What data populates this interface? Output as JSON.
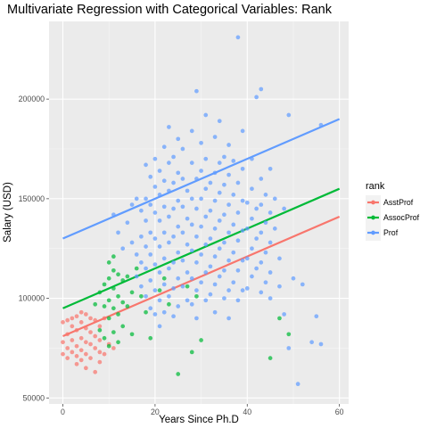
{
  "chart_data": {
    "type": "scatter",
    "title": "Multivariate Regression with Categorical Variables: Rank",
    "xlabel": "Years Since Ph.D",
    "ylabel": "Salary (USD)",
    "xlim": [
      -3,
      62
    ],
    "ylim": [
      47000,
      239000
    ],
    "x_ticks": [
      0,
      20,
      40,
      60
    ],
    "x_tick_labels": [
      "0",
      "20",
      "40",
      "60"
    ],
    "y_ticks": [
      50000,
      100000,
      150000,
      200000
    ],
    "y_tick_labels": [
      "50000",
      "100000",
      "150000",
      "200000"
    ],
    "grid": true,
    "panel_background": "#ebebeb",
    "legend": {
      "title": "rank",
      "placement": "right"
    },
    "series": [
      {
        "name": "AsstProf",
        "color": "#F8766D",
        "fit_line": [
          [
            0,
            81000
          ],
          [
            60,
            141000
          ]
        ],
        "points": [
          [
            0,
            88000
          ],
          [
            0,
            78000
          ],
          [
            0,
            72000
          ],
          [
            1,
            89000
          ],
          [
            1,
            82000
          ],
          [
            1,
            75000
          ],
          [
            1,
            70000
          ],
          [
            2,
            90000
          ],
          [
            2,
            86000
          ],
          [
            2,
            79000
          ],
          [
            2,
            73000
          ],
          [
            3,
            91000
          ],
          [
            3,
            84000
          ],
          [
            3,
            76000
          ],
          [
            3,
            71000
          ],
          [
            3,
            67000
          ],
          [
            4,
            93000
          ],
          [
            4,
            88000
          ],
          [
            4,
            80000
          ],
          [
            4,
            74000
          ],
          [
            4,
            69000
          ],
          [
            5,
            92000
          ],
          [
            5,
            85000
          ],
          [
            5,
            78000
          ],
          [
            5,
            72000
          ],
          [
            5,
            65000
          ],
          [
            6,
            90000
          ],
          [
            6,
            83000
          ],
          [
            6,
            77000
          ],
          [
            6,
            70000
          ],
          [
            7,
            89000
          ],
          [
            7,
            81000
          ],
          [
            7,
            75000
          ],
          [
            7,
            63000
          ],
          [
            8,
            86000
          ],
          [
            8,
            79000
          ],
          [
            8,
            73000
          ],
          [
            8,
            68000
          ],
          [
            9,
            90000
          ],
          [
            9,
            72000
          ],
          [
            10,
            77000
          ],
          [
            11,
            75000
          ]
        ]
      },
      {
        "name": "AssocProf",
        "color": "#00BA38",
        "fit_line": [
          [
            0,
            95000
          ],
          [
            60,
            155000
          ]
        ],
        "points": [
          [
            7,
            97000
          ],
          [
            8,
            103000
          ],
          [
            8,
            84000
          ],
          [
            9,
            107000
          ],
          [
            9,
            96000
          ],
          [
            9,
            80000
          ],
          [
            10,
            118000
          ],
          [
            10,
            110000
          ],
          [
            10,
            99000
          ],
          [
            10,
            90000
          ],
          [
            10,
            76000
          ],
          [
            11,
            121000
          ],
          [
            11,
            114000
          ],
          [
            11,
            105000
          ],
          [
            11,
            95000
          ],
          [
            11,
            83000
          ],
          [
            12,
            112000
          ],
          [
            12,
            101000
          ],
          [
            12,
            92000
          ],
          [
            12,
            78000
          ],
          [
            13,
            109000
          ],
          [
            13,
            98000
          ],
          [
            13,
            86000
          ],
          [
            14,
            111000
          ],
          [
            14,
            96000
          ],
          [
            15,
            103000
          ],
          [
            15,
            82000
          ],
          [
            16,
            115000
          ],
          [
            17,
            101000
          ],
          [
            18,
            93000
          ],
          [
            19,
            80000
          ],
          [
            21,
            104000
          ],
          [
            22,
            110000
          ],
          [
            23,
            97000
          ],
          [
            25,
            62000
          ],
          [
            27,
            106000
          ],
          [
            28,
            73000
          ],
          [
            29,
            101000
          ],
          [
            30,
            79000
          ],
          [
            45,
            70000
          ],
          [
            47,
            90000
          ],
          [
            49,
            82000
          ]
        ]
      },
      {
        "name": "Prof",
        "color": "#619CFF",
        "fit_line": [
          [
            0,
            130000
          ],
          [
            60,
            190000
          ]
        ],
        "points": [
          [
            11,
            142000
          ],
          [
            12,
            133000
          ],
          [
            13,
            125000
          ],
          [
            14,
            138000
          ],
          [
            15,
            147000
          ],
          [
            15,
            128000
          ],
          [
            16,
            150000
          ],
          [
            16,
            122000
          ],
          [
            16,
            111000
          ],
          [
            17,
            144000
          ],
          [
            17,
            131000
          ],
          [
            17,
            118000
          ],
          [
            17,
            106000
          ],
          [
            18,
            167000
          ],
          [
            18,
            150000
          ],
          [
            18,
            139000
          ],
          [
            18,
            126000
          ],
          [
            18,
            115000
          ],
          [
            18,
            101000
          ],
          [
            19,
            161000
          ],
          [
            19,
            147000
          ],
          [
            19,
            133000
          ],
          [
            19,
            122000
          ],
          [
            19,
            109000
          ],
          [
            19,
            95000
          ],
          [
            20,
            170000
          ],
          [
            20,
            156000
          ],
          [
            20,
            143000
          ],
          [
            20,
            130000
          ],
          [
            20,
            117000
          ],
          [
            20,
            104000
          ],
          [
            20,
            92000
          ],
          [
            21,
            164000
          ],
          [
            21,
            152000
          ],
          [
            21,
            139000
          ],
          [
            21,
            126000
          ],
          [
            21,
            113000
          ],
          [
            21,
            99000
          ],
          [
            21,
            86000
          ],
          [
            22,
            176000
          ],
          [
            22,
            159000
          ],
          [
            22,
            146000
          ],
          [
            22,
            133000
          ],
          [
            22,
            120000
          ],
          [
            22,
            107000
          ],
          [
            22,
            93000
          ],
          [
            23,
            186000
          ],
          [
            23,
            168000
          ],
          [
            23,
            154000
          ],
          [
            23,
            141000
          ],
          [
            23,
            128000
          ],
          [
            23,
            115000
          ],
          [
            23,
            101000
          ],
          [
            24,
            171000
          ],
          [
            24,
            158000
          ],
          [
            24,
            145000
          ],
          [
            24,
            131000
          ],
          [
            24,
            118000
          ],
          [
            24,
            105000
          ],
          [
            24,
            91000
          ],
          [
            25,
            180000
          ],
          [
            25,
            163000
          ],
          [
            25,
            149000
          ],
          [
            25,
            136000
          ],
          [
            25,
            123000
          ],
          [
            25,
            110000
          ],
          [
            25,
            96000
          ],
          [
            26,
            175000
          ],
          [
            26,
            160000
          ],
          [
            26,
            146000
          ],
          [
            26,
            133000
          ],
          [
            26,
            119000
          ],
          [
            26,
            106000
          ],
          [
            27,
            154000
          ],
          [
            27,
            140000
          ],
          [
            27,
            127000
          ],
          [
            27,
            113000
          ],
          [
            27,
            99000
          ],
          [
            28,
            184000
          ],
          [
            28,
            168000
          ],
          [
            28,
            150000
          ],
          [
            28,
            137000
          ],
          [
            28,
            124000
          ],
          [
            28,
            110000
          ],
          [
            28,
            97000
          ],
          [
            29,
            204000
          ],
          [
            29,
            160000
          ],
          [
            29,
            145000
          ],
          [
            29,
            131000
          ],
          [
            29,
            118000
          ],
          [
            29,
            104000
          ],
          [
            29,
            90000
          ],
          [
            30,
            178000
          ],
          [
            30,
            164000
          ],
          [
            30,
            150000
          ],
          [
            30,
            136000
          ],
          [
            30,
            122000
          ],
          [
            30,
            108000
          ],
          [
            31,
            192000
          ],
          [
            31,
            170000
          ],
          [
            31,
            155000
          ],
          [
            31,
            141000
          ],
          [
            31,
            127000
          ],
          [
            31,
            113000
          ],
          [
            31,
            99000
          ],
          [
            32,
            158000
          ],
          [
            32,
            144000
          ],
          [
            32,
            130000
          ],
          [
            32,
            116000
          ],
          [
            32,
            102000
          ],
          [
            33,
            181000
          ],
          [
            33,
            163000
          ],
          [
            33,
            149000
          ],
          [
            33,
            135000
          ],
          [
            33,
            121000
          ],
          [
            33,
            107000
          ],
          [
            33,
            93000
          ],
          [
            34,
            189000
          ],
          [
            34,
            168000
          ],
          [
            34,
            153000
          ],
          [
            34,
            139000
          ],
          [
            34,
            125000
          ],
          [
            34,
            111000
          ],
          [
            35,
            171000
          ],
          [
            35,
            157000
          ],
          [
            35,
            142000
          ],
          [
            35,
            128000
          ],
          [
            35,
            114000
          ],
          [
            35,
            100000
          ],
          [
            36,
            177000
          ],
          [
            36,
            162000
          ],
          [
            36,
            147000
          ],
          [
            36,
            133000
          ],
          [
            36,
            119000
          ],
          [
            36,
            104000
          ],
          [
            36,
            90000
          ],
          [
            37,
            169000
          ],
          [
            37,
            152000
          ],
          [
            37,
            137000
          ],
          [
            37,
            123000
          ],
          [
            37,
            108000
          ],
          [
            38,
            231000
          ],
          [
            38,
            158000
          ],
          [
            38,
            143000
          ],
          [
            38,
            129000
          ],
          [
            38,
            114000
          ],
          [
            38,
            99000
          ],
          [
            39,
            184000
          ],
          [
            39,
            165000
          ],
          [
            39,
            149000
          ],
          [
            39,
            134000
          ],
          [
            39,
            119000
          ],
          [
            39,
            104000
          ],
          [
            40,
            148000
          ],
          [
            40,
            135000
          ],
          [
            40,
            120000
          ],
          [
            40,
            105000
          ],
          [
            41,
            170000
          ],
          [
            41,
            155000
          ],
          [
            41,
            140000
          ],
          [
            41,
            125000
          ],
          [
            41,
            111000
          ],
          [
            42,
            201000
          ],
          [
            42,
            145000
          ],
          [
            42,
            130000
          ],
          [
            42,
            115000
          ],
          [
            43,
            205000
          ],
          [
            43,
            160000
          ],
          [
            43,
            147000
          ],
          [
            43,
            133000
          ],
          [
            43,
            118000
          ],
          [
            43,
            103000
          ],
          [
            44,
            152000
          ],
          [
            44,
            138000
          ],
          [
            44,
            123000
          ],
          [
            44,
            108000
          ],
          [
            45,
            165000
          ],
          [
            45,
            143000
          ],
          [
            45,
            128000
          ],
          [
            45,
            113000
          ],
          [
            45,
            100000
          ],
          [
            46,
            150000
          ],
          [
            46,
            135000
          ],
          [
            47,
            120000
          ],
          [
            47,
            106000
          ],
          [
            48,
            145000
          ],
          [
            48,
            92000
          ],
          [
            49,
            192000
          ],
          [
            49,
            75000
          ],
          [
            50,
            110000
          ],
          [
            51,
            57000
          ],
          [
            52,
            107000
          ],
          [
            54,
            78000
          ],
          [
            55,
            91000
          ],
          [
            56,
            77000
          ],
          [
            56,
            187000
          ]
        ]
      }
    ]
  }
}
